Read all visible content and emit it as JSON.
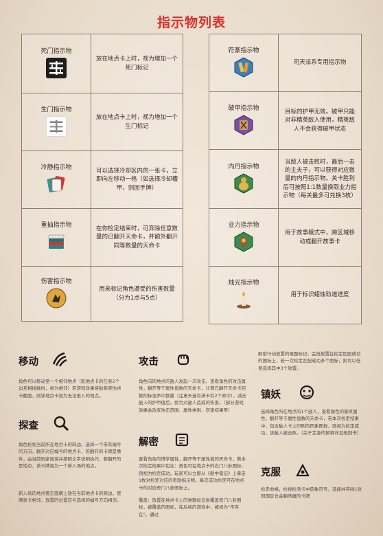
{
  "title": "指示物列表",
  "left_table": [
    {
      "name": "死门指示物",
      "icon": "death-gate-icon",
      "desc": "放在地点卡上时，视为增加一个死门标记"
    },
    {
      "name": "生门指示物",
      "icon": "life-gate-icon",
      "desc": "放在地点卡上时，视为增加一个生门标记"
    },
    {
      "name": "冷静指示物",
      "icon": "calm-cards-icon",
      "desc": "可以选择冷却区内的一张卡，立即向左移动一格（如选择冷却槽甲，则回手牌）"
    },
    {
      "name": "重抽指示物",
      "icon": "redraw-stack-icon",
      "desc": "在你检定结束时，可弃除任意数量的已翻开天命卡，并额外翻开同等数量的天命卡"
    },
    {
      "name": "伤害指示物",
      "icon": "damage-icon",
      "desc": "用来标记角色遭受的伤害数量（分为1点与5点）"
    }
  ],
  "right_table": [
    {
      "name": "符篆指示物",
      "icon": "talisman-icon",
      "desc": "司天派系专用指示物"
    },
    {
      "name": "破甲指示物",
      "icon": "armor-break-icon",
      "desc": "目标的护甲无效。破甲只能对非精英敌人使用，精英敌人不会获得破甲状态"
    },
    {
      "name": "内丹指示物",
      "icon": "inner-elixir-icon",
      "desc": "当敌人被击败时，最后一击的主夫子，可以获得对应数量的内丹指示物。关卡胜利后可按照1:1数量换取业力指示物（每关最多可兑换3枚）"
    },
    {
      "name": "业力指示物",
      "icon": "karma-icon",
      "desc": "用于故事模式中，跨区域移动或翻开故事卡"
    },
    {
      "name": "烛光指示物",
      "icon": "candle-icon",
      "desc": "用于标识蜡烛轨道进度"
    }
  ],
  "sections": {
    "move": {
      "title": "移动",
      "text": "角色可以移动至一个相邻地点（既地点卡的任意2个边互相接触时，视为相邻）若游戏效果将敌某使他点卡翻面，则该地点卡视为无法进入的地点。"
    },
    "explore": {
      "title": "探查",
      "text1": "角色检视当前所在地点卡的四边。选择一个带有编号的方向，翻开对应编号的地点卡，若翻开的卡牌是事件，由当前玩家阅读并按照文字说明执行，若翻开的是地点，该卡牌视为一个新入场的地点。",
      "text2": "新入场的地点要正面朝上放在当前地点卡的旁边，使两张卡相邻，放置的位置应与选择的编号方向相邻。"
    },
    "attack": {
      "title": "攻击",
      "text": "角色向同地点的敌人发起一次攻击。查看角色的攻击属性，翻开等于属性值数的天命卡，计算已翻开天命卡回数的标准命中数量（注意天选有满卡有2个命中），减去敌人的护甲值后，即为对敌人造成的伤害。（部分游戏效果会改变攻击范围、属性类别、伤害结果等）"
    },
    "decipher": {
      "title": "解密",
      "text1": "查看角色的博学属性，翻开等于属性值的天命卡，若本次检定结果中包含：角色可在地点卡的右门八卦图标，则视为检定成功。玩家可以立即从《剧中笔记》上拿走1枚对检定对应的奇励指示物，每次成功检定可在地点卡的对应奇门八卦图标上。",
      "text2": "覆盖：放置在地点卡上的难题标记会覆盖奇门八卦图标，被覆盖的图标，在后续的游戏中，被视为\"不存在\"。通过"
    },
    "right_top": {
      "text": "解密行动放置的难题标记，会抵放置在检定匹配成功的图标上，若一次检定匹配成功多个图标，则可以任意选择其中3个放置。"
    },
    "suppress": {
      "title": "镇妖",
      "text": "选择角色所在地点的1个敌人，查看角色的御灵属性，翻开等于属性值数的天命卡，若本次检定结果中，包含敌人卡上印刷的四象图标，则视为检定成功，该敌人被击败。（关于定身的解释详见规则书）"
    },
    "restrain": {
      "title": "克服",
      "text": "检定命格，检视检测卡中四象符号，选择并弃除1张冠期区仓金翻然魔的卡牌"
    }
  }
}
